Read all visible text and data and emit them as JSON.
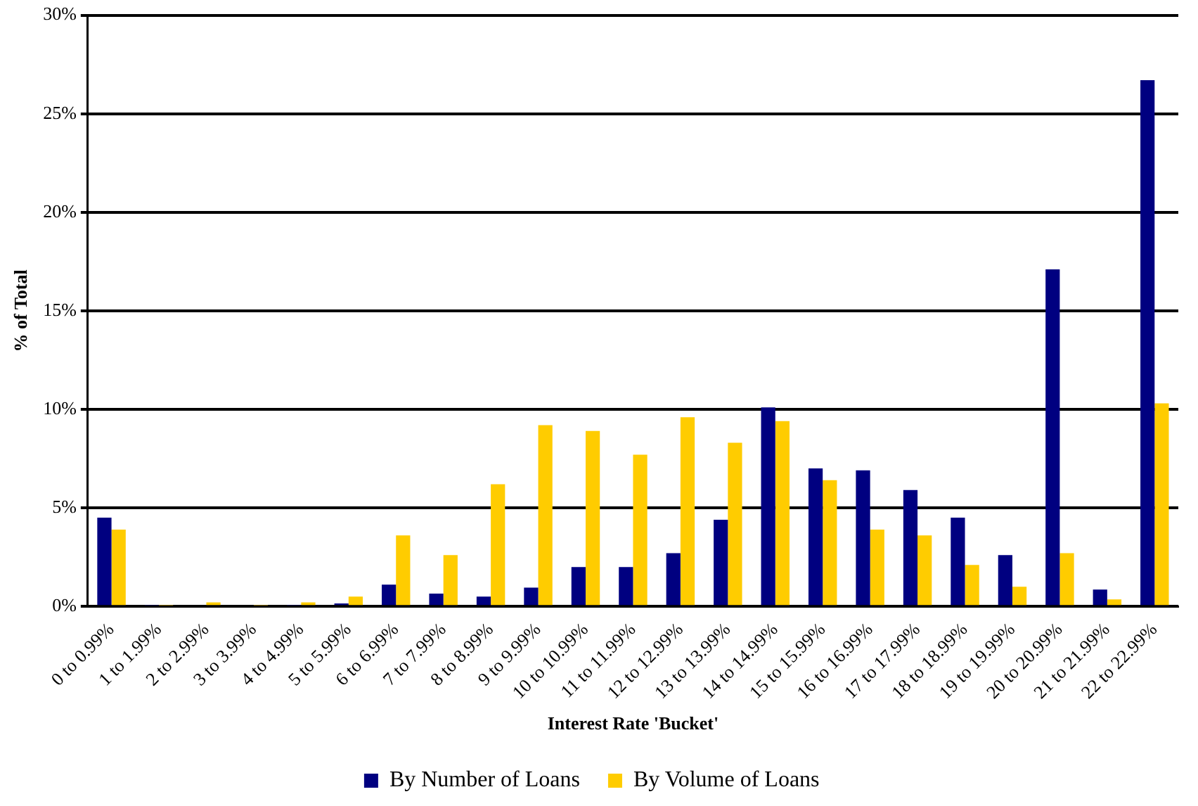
{
  "chart_data": {
    "type": "bar",
    "xlabel": "Interest Rate 'Bucket'",
    "ylabel": "% of Total",
    "categories": [
      "0 to 0.99%",
      "1 to 1.99%",
      "2 to 2.99%",
      "3 to 3.99%",
      "4 to 4.99%",
      "5 to 5.99%",
      "6 to 6.99%",
      "7 to 7.99%",
      "8 to 8.99%",
      "9 to 9.99%",
      "10 to 10.99%",
      "11 to 11.99%",
      "12 to 12.99%",
      "13 to 13.99%",
      "14 to 14.99%",
      "15 to 15.99%",
      "16 to 16.99%",
      "17 to 17.99%",
      "18 to 18.99%",
      "19 to 19.99%",
      "20 to 20.99%",
      "21 to 21.99%",
      "22 to 22.99%"
    ],
    "series": [
      {
        "name": "By Number of Loans",
        "color": "#000080",
        "values": [
          4.5,
          0.05,
          0,
          0,
          0.05,
          0.15,
          1.1,
          0.65,
          0.5,
          0.95,
          2.0,
          2.0,
          2.7,
          4.4,
          10.1,
          7.0,
          6.9,
          5.9,
          4.5,
          2.6,
          17.1,
          0.85,
          26.7
        ]
      },
      {
        "name": "By Volume of Loans",
        "color": "#ffcc00",
        "values": [
          3.9,
          0.05,
          0.2,
          0.05,
          0.2,
          0.5,
          3.6,
          2.6,
          6.2,
          9.2,
          8.9,
          7.7,
          9.6,
          8.3,
          9.4,
          6.4,
          3.9,
          3.6,
          2.1,
          1.0,
          2.7,
          0.35,
          10.3
        ]
      }
    ],
    "ylim": [
      0,
      30
    ],
    "yticks": [
      {
        "value": 0,
        "label": "0%"
      },
      {
        "value": 5,
        "label": "5%"
      },
      {
        "value": 10,
        "label": "10%"
      },
      {
        "value": 15,
        "label": "15%"
      },
      {
        "value": 20,
        "label": "20%"
      },
      {
        "value": 25,
        "label": "25%"
      },
      {
        "value": 30,
        "label": "30%"
      }
    ],
    "grid": "y",
    "legend": "bottom"
  }
}
